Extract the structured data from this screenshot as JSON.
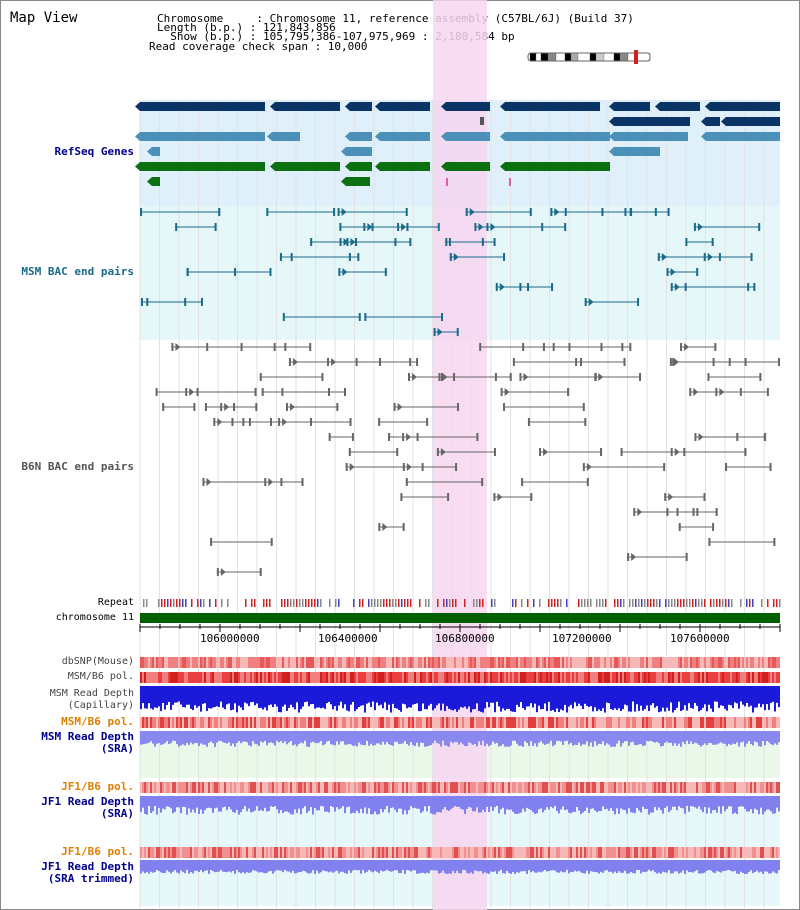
{
  "title": "Map View",
  "info": {
    "chromosome": "Chromosome     : Chromosome 11, reference assembly (C57BL/6J) (Build 37)",
    "length": "Length (b.p.) : 121,843,856",
    "show": "  Show (b.p.) : 105,795,386-107,975,969 : 2,180,584 bp",
    "coverage": "Read coverage check span : 10,000"
  },
  "tracks": {
    "refseq": "RefSeq Genes",
    "msm_bac": "MSM BAC end pairs",
    "b6n_bac": "B6N BAC end pairs",
    "repeat": "Repeat",
    "chrom": "chromosome 11",
    "dbsnp": "dbSNP(Mouse)",
    "msm_b6_pol": "MSM/B6 pol.",
    "msm_depth_cap": "MSM Read Depth",
    "msm_depth_cap_sub": "(Capillary)",
    "msm_b6_pol2": "MSM/B6 pol.",
    "msm_depth_sra": "MSM Read Depth",
    "msm_depth_sra_sub": "(SRA)",
    "jf1_pol": "JF1/B6 pol.",
    "jf1_depth_sra": "JF1 Read Depth",
    "jf1_depth_sra_sub": "(SRA)",
    "jf1_pol2": "JF1/B6 pol.",
    "jf1_depth_trim": "JF1 Read Depth",
    "jf1_depth_trim_sub": "(SRA trimmed)"
  },
  "axis_ticks": [
    "106000000",
    "106400000",
    "106800000",
    "107200000",
    "107600000"
  ],
  "colors": {
    "refseq_dark": "#0a3466",
    "refseq_mid": "#4a90b8",
    "refseq_green": "#0a7010",
    "msm_bac": "#1a6a8a",
    "label_blue": "#00008b",
    "label_orange": "#e08000",
    "highlight": "#f6d6f0"
  }
}
